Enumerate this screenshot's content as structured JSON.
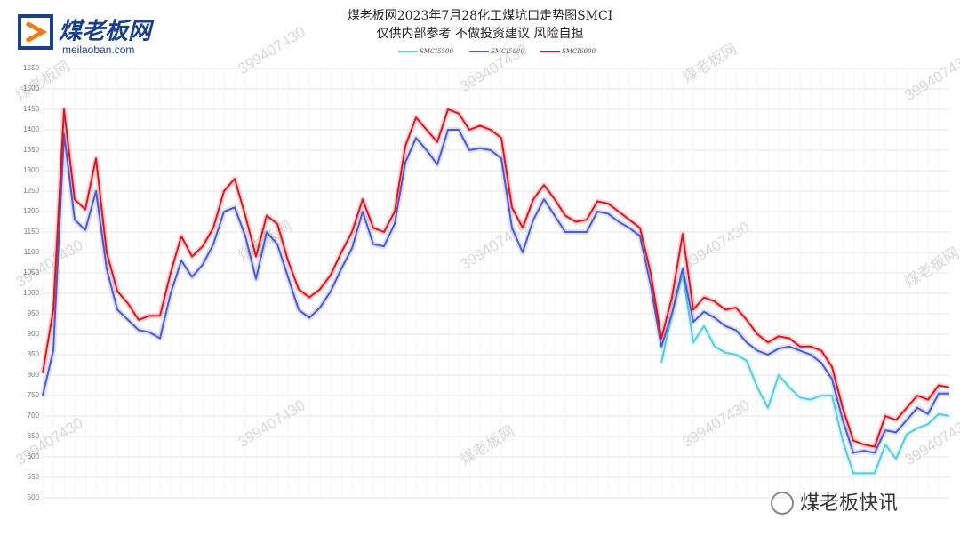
{
  "logo": {
    "name": "煤老板网",
    "site": "meilaoban.com"
  },
  "footer": "煤老板快讯",
  "watermark": {
    "number": "399407430",
    "site": "煤老板网"
  },
  "chart_data": {
    "type": "line",
    "title": "煤老板网2023年7月28化工煤坑口走势图SMCI",
    "subtitle": "仅供内部参考 不做投资建议 风险自担",
    "ylim": [
      500,
      1550
    ],
    "yticks": [
      500,
      550,
      600,
      650,
      700,
      750,
      800,
      850,
      900,
      950,
      1000,
      1050,
      1100,
      1150,
      1200,
      1250,
      1300,
      1350,
      1400,
      1450,
      1500,
      1550
    ],
    "grid": true,
    "series": [
      {
        "name": "SMCI5500",
        "color": "#52cde0",
        "values": [
          null,
          null,
          null,
          null,
          null,
          null,
          null,
          null,
          null,
          null,
          null,
          null,
          null,
          null,
          null,
          null,
          null,
          null,
          null,
          null,
          null,
          null,
          null,
          null,
          null,
          null,
          null,
          null,
          null,
          null,
          null,
          null,
          null,
          null,
          null,
          null,
          null,
          null,
          null,
          null,
          null,
          null,
          null,
          null,
          null,
          null,
          null,
          null,
          null,
          null,
          null,
          null,
          null,
          null,
          null,
          null,
          null,
          null,
          830,
          950,
          1050,
          880,
          920,
          870,
          855,
          850,
          835,
          770,
          720,
          800,
          770,
          745,
          740,
          750,
          750,
          640,
          560,
          560,
          560,
          630,
          595,
          655,
          670,
          680,
          705,
          700
        ]
      },
      {
        "name": "SMCI5800",
        "color": "#4a5ad8",
        "values": [
          750,
          860,
          1390,
          1180,
          1155,
          1250,
          1060,
          960,
          935,
          910,
          905,
          890,
          1000,
          1080,
          1040,
          1070,
          1120,
          1200,
          1210,
          1140,
          1035,
          1150,
          1120,
          1040,
          960,
          940,
          965,
          1005,
          1060,
          1110,
          1200,
          1120,
          1115,
          1170,
          1320,
          1380,
          1350,
          1315,
          1400,
          1400,
          1350,
          1355,
          1350,
          1330,
          1160,
          1100,
          1180,
          1230,
          1190,
          1150,
          1150,
          1150,
          1200,
          1195,
          1175,
          1160,
          1140,
          1020,
          870,
          950,
          1060,
          930,
          955,
          940,
          920,
          910,
          880,
          860,
          850,
          865,
          870,
          860,
          850,
          830,
          790,
          690,
          610,
          615,
          610,
          665,
          660,
          690,
          720,
          705,
          755,
          755
        ]
      },
      {
        "name": "SMCI6000",
        "color": "#e0141e",
        "values": [
          805,
          960,
          1450,
          1230,
          1205,
          1330,
          1100,
          1005,
          975,
          935,
          945,
          945,
          1050,
          1140,
          1090,
          1115,
          1160,
          1250,
          1280,
          1190,
          1090,
          1190,
          1170,
          1080,
          1010,
          990,
          1010,
          1045,
          1100,
          1150,
          1230,
          1160,
          1150,
          1200,
          1360,
          1430,
          1400,
          1370,
          1450,
          1440,
          1400,
          1410,
          1400,
          1380,
          1210,
          1160,
          1230,
          1265,
          1230,
          1190,
          1175,
          1180,
          1225,
          1220,
          1200,
          1180,
          1160,
          1050,
          890,
          990,
          1145,
          960,
          990,
          980,
          960,
          965,
          935,
          900,
          880,
          895,
          890,
          870,
          870,
          860,
          820,
          720,
          640,
          630,
          625,
          700,
          690,
          720,
          750,
          740,
          775,
          770
        ]
      }
    ]
  }
}
